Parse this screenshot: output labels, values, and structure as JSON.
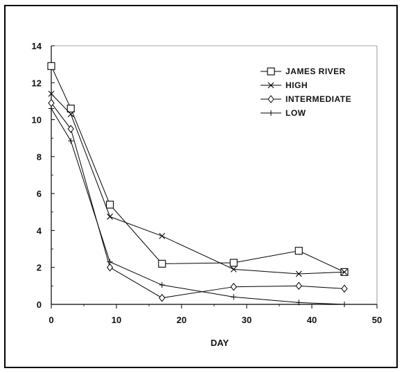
{
  "chart_data": {
    "type": "line",
    "title": "",
    "xlabel": "DAY",
    "ylabel": "",
    "xlim": [
      0,
      50
    ],
    "ylim": [
      0,
      14
    ],
    "xticks": [
      0,
      10,
      20,
      30,
      40,
      50
    ],
    "yticks": [
      0,
      2,
      4,
      6,
      8,
      10,
      12,
      14
    ],
    "grid": false,
    "legend_position": "top-right",
    "series": [
      {
        "name": "JAMES RIVER",
        "marker": "square",
        "x": [
          0,
          3,
          9,
          17,
          28,
          38,
          45
        ],
        "values": [
          12.9,
          10.6,
          5.4,
          2.2,
          2.25,
          2.9,
          1.75
        ]
      },
      {
        "name": "HIGH",
        "marker": "x",
        "x": [
          0,
          3,
          9,
          17,
          28,
          38,
          45
        ],
        "values": [
          11.4,
          10.3,
          4.75,
          3.7,
          1.9,
          1.65,
          1.75
        ]
      },
      {
        "name": "INTERMEDIATE",
        "marker": "diamond",
        "x": [
          0,
          3,
          9,
          17,
          28,
          38,
          45
        ],
        "values": [
          10.9,
          9.5,
          2.0,
          0.35,
          0.95,
          1.0,
          0.85
        ]
      },
      {
        "name": "LOW",
        "marker": "plus",
        "x": [
          0,
          3,
          9,
          17,
          28,
          38,
          45
        ],
        "values": [
          10.6,
          8.85,
          2.3,
          1.05,
          0.4,
          0.1,
          0.0
        ]
      }
    ]
  }
}
